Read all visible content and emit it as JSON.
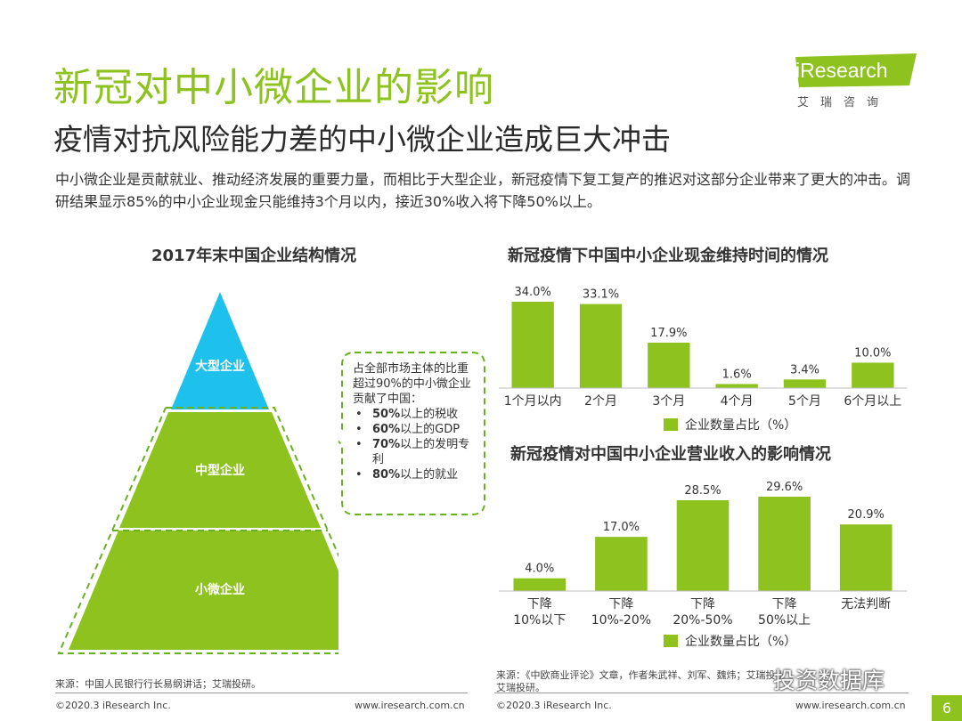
{
  "header": {
    "title": "新冠对中小微企业的影响",
    "subtitle": "疫情对抗风险能力差的中小微企业造成巨大冲击",
    "intro": "中小微企业是贡献就业、推动经济发展的重要力量，而相比于大型企业，新冠疫情下复工复产的推迟对这部分企业带来了更大的冲击。调研结果显示85%的中小企业现金只能维持3个月以内，接近30%收入将下降50%以上。"
  },
  "logo": {
    "text": "iResearch",
    "sub": "艾瑞咨询"
  },
  "chart_data": [
    {
      "type": "diagram",
      "title": "2017年末中国企业结构情况",
      "levels": [
        "大型企业",
        "中型企业",
        "小微企业"
      ],
      "note": {
        "intro": "占全部市场主体的比重超过90%的中小微企业贡献了中国：",
        "items": [
          {
            "value": "50%",
            "text": "以上的税收"
          },
          {
            "value": "60%",
            "text": "以上的GDP"
          },
          {
            "value": "70%",
            "text": "以上的发明专利"
          },
          {
            "value": "80%",
            "text": "以上的就业"
          }
        ]
      },
      "colors": {
        "top": "#1ec1ec",
        "middle": "#8dc21f",
        "bottom": "#8dc21f"
      }
    },
    {
      "type": "bar",
      "title": "新冠疫情下中国中小企业现金维持时间的情况",
      "categories": [
        "1个月以内",
        "2个月",
        "3个月",
        "4个月",
        "5个月",
        "6个月以上"
      ],
      "values": [
        34.0,
        33.1,
        17.9,
        1.6,
        3.4,
        10.0
      ],
      "labels": [
        "34.0%",
        "33.1%",
        "17.9%",
        "1.6%",
        "3.4%",
        "10.0%"
      ],
      "legend": "企业数量占比（%）",
      "ylim": [
        0,
        34.0
      ],
      "color": "#8dc21f"
    },
    {
      "type": "bar",
      "title": "新冠疫情对中国中小企业营业收入的影响情况",
      "categories": [
        [
          "下降",
          "10%以下"
        ],
        [
          "下降",
          "10%-20%"
        ],
        [
          "下降",
          "20%-50%"
        ],
        [
          "下降",
          "50%以上"
        ],
        [
          "无法判断"
        ]
      ],
      "values": [
        4.0,
        17.0,
        28.5,
        29.6,
        20.9
      ],
      "labels": [
        "4.0%",
        "17.0%",
        "28.5%",
        "29.6%",
        "20.9%"
      ],
      "legend": "企业数量占比（%）",
      "ylim": [
        0,
        29.6
      ],
      "color": "#8dc21f"
    }
  ],
  "footer": {
    "source_left": "来源：中国人民银行行长易纲讲话；艾瑞投研。",
    "source_right_line1": "来源：《中欧商业评论》文章，作者朱武祥、刘军、魏炜；艾瑞投研。",
    "source_right_line2": "艾瑞投研。",
    "copyright_left": "©2020.3 iResearch Inc.",
    "url_left": "www.iresearch.com.cn",
    "copyright_right": "©2020.3 iResearch Inc.",
    "url_right": "www.iresearch.com.cn",
    "page": "6",
    "watermark": "投资数据库"
  }
}
